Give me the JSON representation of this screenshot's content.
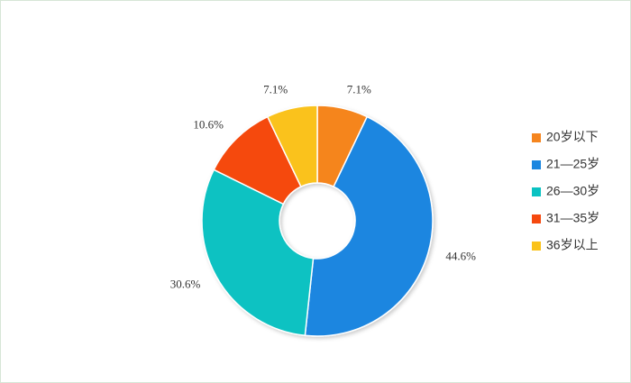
{
  "chart_data": {
    "type": "donut",
    "categories": [
      "20岁以下",
      "21—25岁",
      "26—30岁",
      "31—35岁",
      "36岁以上"
    ],
    "values": [
      7.1,
      44.6,
      30.6,
      10.6,
      7.1
    ],
    "value_labels": [
      "7.1%",
      "44.6%",
      "30.6%",
      "10.6%",
      "7.1%"
    ],
    "colors": [
      "#f5851f",
      "#1a86e0",
      "#0ac2c2",
      "#f5490f",
      "#fac21a"
    ],
    "legend": "right"
  }
}
